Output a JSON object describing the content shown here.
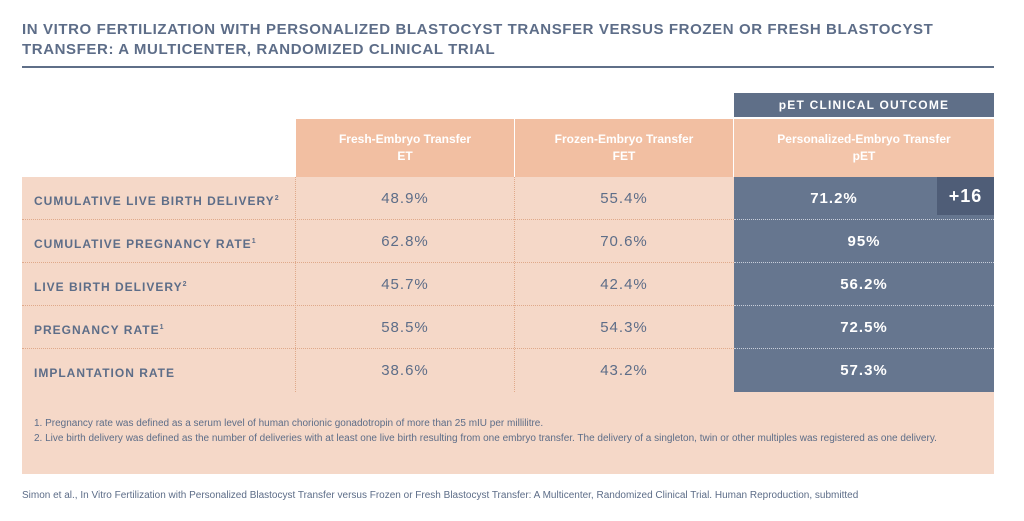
{
  "title": "IN VITRO FERTILIZATION WITH PERSONALIZED BLASTOCYST TRANSFER VERSUS FROZEN OR FRESH BLASTOCYST TRANSFER: A MULTICENTER, RANDOMIZED CLINICAL TRIAL",
  "group_header": "pET CLINICAL OUTCOME",
  "columns": [
    {
      "name": "Fresh-Embryo Transfer",
      "abbr": "ET"
    },
    {
      "name": "Frozen-Embryo Transfer",
      "abbr": "FET"
    },
    {
      "name": "Personalized-Embryo Transfer",
      "abbr": "pET"
    }
  ],
  "rows": [
    {
      "label": "CUMULATIVE LIVE BIRTH DELIVERY",
      "sup": "2",
      "et": "48.9%",
      "fet": "55.4%",
      "pet": "71.2%"
    },
    {
      "label": "CUMULATIVE PREGNANCY RATE",
      "sup": "1",
      "et": "62.8%",
      "fet": "70.6%",
      "pet": "95%"
    },
    {
      "label": "LIVE BIRTH DELIVERY",
      "sup": "2",
      "et": "45.7%",
      "fet": "42.4%",
      "pet": "56.2%"
    },
    {
      "label": "PREGNANCY RATE",
      "sup": "1",
      "et": "58.5%",
      "fet": "54.3%",
      "pet": "72.5%"
    },
    {
      "label": "IMPLANTATION RATE",
      "sup": "",
      "et": "38.6%",
      "fet": "43.2%",
      "pet": "57.3%"
    }
  ],
  "badge": "+16",
  "notes": [
    "1. Pregnancy rate was defined as a serum level of human chorionic gonadotropin of more than 25 mIU per millilitre.",
    "2. Live birth delivery was defined as the number of deliveries with at least one live birth resulting from one embryo transfer. The delivery of a singleton, twin or other multiples was registered as one delivery."
  ],
  "citation": "Simon et al., In Vitro Fertilization with Personalized Blastocyst Transfer versus Frozen or Fresh Blastocyst Transfer: A Multicenter, Randomized Clinical Trial. Human Reproduction, submitted",
  "colors": {
    "navy": "#5f6f88",
    "peach": "#f2bfa2",
    "light_peach": "#f5d8c8",
    "badge": "#4f5d77"
  }
}
